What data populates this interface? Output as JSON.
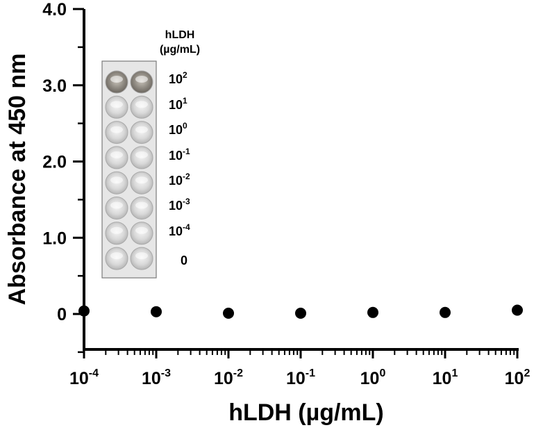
{
  "chart_data": {
    "type": "scatter",
    "xlabel": "hLDH (µg/mL)",
    "ylabel": "Absorbance at 450 nm",
    "x_scale": "log",
    "xlim": [
      0.0001,
      100
    ],
    "ylim": [
      -0.5,
      4.0
    ],
    "grid": false,
    "y_ticks": [
      "0",
      "1.0",
      "2.0",
      "3.0",
      "4.0"
    ],
    "x_ticks": [
      {
        "base": "10",
        "exp": "-4"
      },
      {
        "base": "10",
        "exp": "-3"
      },
      {
        "base": "10",
        "exp": "-2"
      },
      {
        "base": "10",
        "exp": "-1"
      },
      {
        "base": "10",
        "exp": "0"
      },
      {
        "base": "10",
        "exp": "1"
      },
      {
        "base": "10",
        "exp": "2"
      }
    ],
    "points": [
      {
        "x": 0.0001,
        "y": 0.04
      },
      {
        "x": 0.001,
        "y": 0.03
      },
      {
        "x": 0.01,
        "y": 0.01
      },
      {
        "x": 0.1,
        "y": 0.01
      },
      {
        "x": 1,
        "y": 0.02
      },
      {
        "x": 10,
        "y": 0.02
      },
      {
        "x": 100,
        "y": 0.05
      }
    ],
    "marker_color": "#000000",
    "inset": {
      "header_line1": "hLDH",
      "header_line2": "(µg/mL)",
      "labels": [
        {
          "base": "10",
          "exp": "2"
        },
        {
          "base": "10",
          "exp": "1"
        },
        {
          "base": "10",
          "exp": "0"
        },
        {
          "base": "10",
          "exp": "-1"
        },
        {
          "base": "10",
          "exp": "-2"
        },
        {
          "base": "10",
          "exp": "-3"
        },
        {
          "base": "10",
          "exp": "-4"
        },
        {
          "base": "0",
          "exp": ""
        }
      ]
    }
  }
}
